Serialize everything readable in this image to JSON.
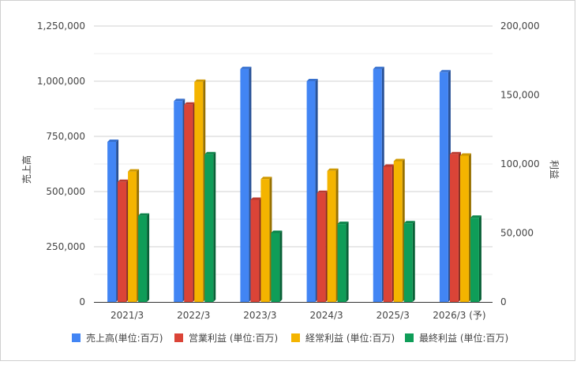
{
  "chart_data": {
    "type": "bar",
    "categories": [
      "2021/3",
      "2022/3",
      "2023/3",
      "2024/3",
      "2025/3",
      "2026/3 (予)"
    ],
    "series": [
      {
        "name": "売上高(単位:百万)",
        "axis": "left",
        "color": "#4285f4",
        "values": [
          725000,
          910000,
          1055000,
          1000000,
          1055000,
          1040000
        ]
      },
      {
        "name": "営業利益 (単位:百万)",
        "axis": "right",
        "color": "#db4437",
        "values": [
          87000,
          143000,
          74000,
          79000,
          98000,
          107000
        ]
      },
      {
        "name": "経常利益 (単位:百万)",
        "axis": "right",
        "color": "#f4b400",
        "values": [
          94500,
          159500,
          89000,
          95000,
          102000,
          106000
        ]
      },
      {
        "name": "最終利益 (単位:百万)",
        "axis": "right",
        "color": "#0f9d58",
        "values": [
          62500,
          107000,
          50000,
          56500,
          57000,
          61000
        ]
      }
    ],
    "left_axis": {
      "label": "売上高",
      "range": [
        0,
        1250000
      ],
      "ticks": [
        "0",
        "250,000",
        "500,000",
        "750,000",
        "1,000,000",
        "1,250,000"
      ]
    },
    "right_axis": {
      "label": "利益",
      "range": [
        0,
        200000
      ],
      "ticks": [
        "0",
        "50,000",
        "100,000",
        "150,000",
        "200,000"
      ]
    },
    "grid": true,
    "legend_position": "bottom"
  }
}
